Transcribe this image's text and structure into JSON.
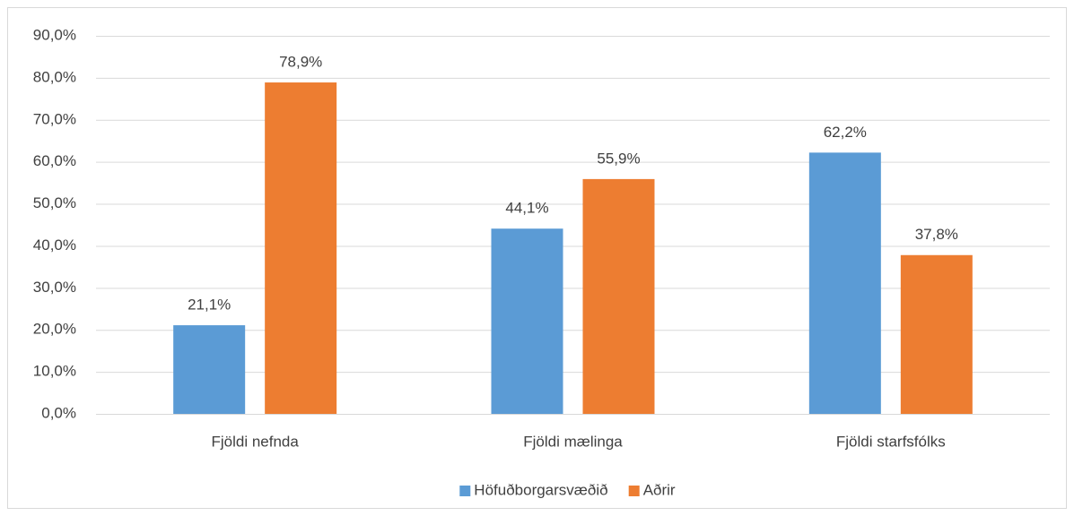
{
  "chart_data": {
    "type": "bar",
    "categories": [
      "Fjöldi nefnda",
      "Fjöldi mælinga",
      "Fjöldi starfsfólks"
    ],
    "series": [
      {
        "name": "Höfuðborgarsvæðið",
        "color": "#5b9bd5",
        "values": [
          21.1,
          44.1,
          62.2
        ],
        "value_labels": [
          "21,1%",
          "44,1%",
          "62,2%"
        ]
      },
      {
        "name": "Aðrir",
        "color": "#ed7d31",
        "values": [
          78.9,
          55.9,
          37.8
        ],
        "value_labels": [
          "78,9%",
          "55,9%",
          "37,8%"
        ]
      }
    ],
    "ylim": [
      0,
      90
    ],
    "yticks": [
      {
        "value": 0,
        "label": "0,0%"
      },
      {
        "value": 10,
        "label": "10,0%"
      },
      {
        "value": 20,
        "label": "20,0%"
      },
      {
        "value": 30,
        "label": "30,0%"
      },
      {
        "value": 40,
        "label": "40,0%"
      },
      {
        "value": 50,
        "label": "50,0%"
      },
      {
        "value": 60,
        "label": "60,0%"
      },
      {
        "value": 70,
        "label": "70,0%"
      },
      {
        "value": 80,
        "label": "80,0%"
      },
      {
        "value": 90,
        "label": "90,0%"
      }
    ],
    "grid": true,
    "legend": "bottom"
  }
}
